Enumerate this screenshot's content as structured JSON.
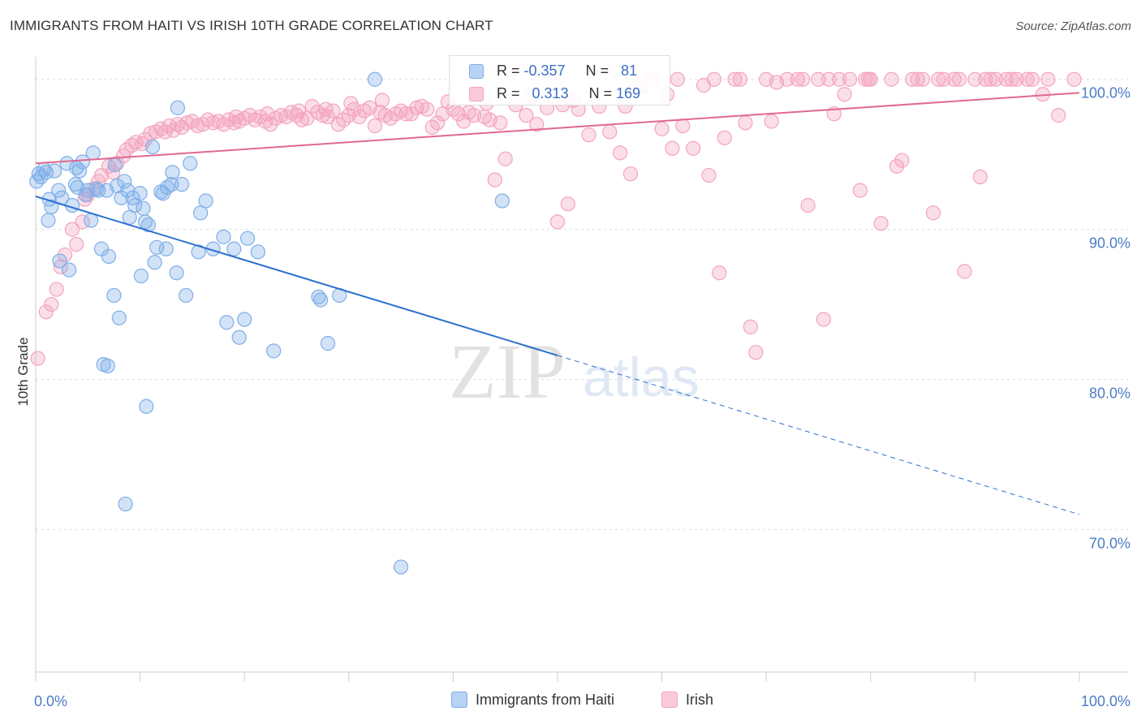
{
  "title": "IMMIGRANTS FROM HAITI VS IRISH 10TH GRADE CORRELATION CHART",
  "source": "Source: ZipAtlas.com",
  "watermark": {
    "zip": "ZIP",
    "atlas": "atlas"
  },
  "legend": {
    "rows": [
      {
        "r_label": "R =",
        "r_value": "-0.357",
        "n_label": "N =",
        "n_value": "81"
      },
      {
        "r_label": "R =",
        "r_value": "0.313",
        "n_label": "N =",
        "n_value": "169"
      }
    ]
  },
  "chart_data": {
    "type": "scatter",
    "title": "IMMIGRANTS FROM HAITI VS IRISH 10TH GRADE CORRELATION CHART",
    "ylabel": "10th Grade",
    "xlim": [
      0,
      100
    ],
    "ylim": [
      60.5,
      101.5
    ],
    "x_tick_labels": [
      "0.0%",
      "100.0%"
    ],
    "y_ticks": [
      70,
      80,
      90,
      100
    ],
    "y_tick_labels": [
      "70.0%",
      "80.0%",
      "90.0%",
      "100.0%"
    ],
    "grid": true,
    "legend_position": "top-center",
    "series": [
      {
        "name": "Immigrants from Haiti",
        "color": "#7eaee8",
        "line_color": "#2b6fcf",
        "r": -0.357,
        "n": 81,
        "trend": {
          "x0": 0,
          "y0": 92.2,
          "x1": 100,
          "y1": 71.0,
          "solid_until": 50
        },
        "points": [
          [
            0.3,
            93.7
          ],
          [
            0.5,
            93.5
          ],
          [
            0.8,
            94.0
          ],
          [
            1.0,
            93.8
          ],
          [
            1.2,
            90.6
          ],
          [
            1.3,
            92.0
          ],
          [
            1.5,
            91.5
          ],
          [
            2.2,
            92.6
          ],
          [
            2.3,
            87.9
          ],
          [
            2.5,
            92.1
          ],
          [
            3.0,
            94.4
          ],
          [
            3.2,
            87.3
          ],
          [
            3.5,
            91.6
          ],
          [
            3.8,
            93.0
          ],
          [
            3.9,
            94.1
          ],
          [
            4.0,
            92.8
          ],
          [
            4.2,
            93.9
          ],
          [
            4.5,
            94.5
          ],
          [
            4.8,
            92.3
          ],
          [
            5.0,
            92.6
          ],
          [
            5.3,
            90.6
          ],
          [
            5.5,
            95.1
          ],
          [
            5.8,
            92.7
          ],
          [
            6.0,
            92.6
          ],
          [
            6.3,
            88.7
          ],
          [
            6.5,
            81.0
          ],
          [
            6.8,
            92.6
          ],
          [
            6.9,
            80.9
          ],
          [
            7.0,
            88.2
          ],
          [
            7.5,
            85.6
          ],
          [
            7.6,
            94.3
          ],
          [
            7.8,
            92.9
          ],
          [
            8.0,
            84.1
          ],
          [
            8.2,
            92.1
          ],
          [
            8.5,
            93.2
          ],
          [
            8.6,
            71.7
          ],
          [
            8.8,
            92.6
          ],
          [
            9.0,
            90.8
          ],
          [
            9.3,
            92.1
          ],
          [
            9.5,
            91.6
          ],
          [
            10.0,
            92.4
          ],
          [
            10.1,
            86.9
          ],
          [
            10.3,
            91.4
          ],
          [
            10.5,
            90.5
          ],
          [
            10.6,
            78.2
          ],
          [
            10.8,
            90.3
          ],
          [
            11.2,
            95.5
          ],
          [
            11.4,
            87.8
          ],
          [
            11.6,
            88.8
          ],
          [
            12.0,
            92.5
          ],
          [
            12.2,
            92.4
          ],
          [
            12.5,
            88.7
          ],
          [
            12.6,
            92.8
          ],
          [
            13.0,
            93.0
          ],
          [
            13.1,
            93.8
          ],
          [
            13.5,
            87.1
          ],
          [
            13.6,
            98.1
          ],
          [
            14.0,
            93.0
          ],
          [
            14.4,
            85.6
          ],
          [
            14.8,
            94.4
          ],
          [
            15.6,
            88.5
          ],
          [
            15.8,
            91.1
          ],
          [
            16.3,
            91.9
          ],
          [
            17.0,
            88.7
          ],
          [
            18.0,
            89.5
          ],
          [
            18.3,
            83.8
          ],
          [
            19.0,
            88.7
          ],
          [
            19.5,
            82.8
          ],
          [
            20.0,
            84.0
          ],
          [
            20.3,
            89.4
          ],
          [
            21.3,
            88.5
          ],
          [
            22.8,
            81.9
          ],
          [
            27.1,
            85.5
          ],
          [
            27.3,
            85.3
          ],
          [
            28.0,
            82.4
          ],
          [
            29.1,
            85.6
          ],
          [
            32.5,
            100.0
          ],
          [
            35.0,
            67.5
          ],
          [
            44.7,
            91.9
          ],
          [
            0.1,
            93.2
          ],
          [
            1.8,
            93.9
          ]
        ]
      },
      {
        "name": "Irish",
        "color": "#f4a3bd",
        "line_color": "#e0698f",
        "r": 0.313,
        "n": 169,
        "trend": {
          "x0": 0,
          "y0": 94.4,
          "x1": 100,
          "y1": 99.1
        },
        "points": [
          [
            0.2,
            81.4
          ],
          [
            1.0,
            84.5
          ],
          [
            1.5,
            85.0
          ],
          [
            2.0,
            86.0
          ],
          [
            2.4,
            87.5
          ],
          [
            2.8,
            88.3
          ],
          [
            3.5,
            90.0
          ],
          [
            3.9,
            89.0
          ],
          [
            4.5,
            90.5
          ],
          [
            4.7,
            92.0
          ],
          [
            5.0,
            92.3
          ],
          [
            5.5,
            92.7
          ],
          [
            6.0,
            93.2
          ],
          [
            6.3,
            93.6
          ],
          [
            7.0,
            94.2
          ],
          [
            7.4,
            93.8
          ],
          [
            7.8,
            94.4
          ],
          [
            8.4,
            94.9
          ],
          [
            8.7,
            95.3
          ],
          [
            9.2,
            95.6
          ],
          [
            9.6,
            95.8
          ],
          [
            10.2,
            95.7
          ],
          [
            10.5,
            96.0
          ],
          [
            11.0,
            96.4
          ],
          [
            11.5,
            96.5
          ],
          [
            12.0,
            96.7
          ],
          [
            12.4,
            96.5
          ],
          [
            12.8,
            96.9
          ],
          [
            13.2,
            96.6
          ],
          [
            13.6,
            97.0
          ],
          [
            14.0,
            96.8
          ],
          [
            14.5,
            97.1
          ],
          [
            15.0,
            97.2
          ],
          [
            15.5,
            96.9
          ],
          [
            16.0,
            97.0
          ],
          [
            16.5,
            97.3
          ],
          [
            17.0,
            97.1
          ],
          [
            17.5,
            97.2
          ],
          [
            18.0,
            97.0
          ],
          [
            18.5,
            97.3
          ],
          [
            19.0,
            97.1
          ],
          [
            19.5,
            97.2
          ],
          [
            20.0,
            97.4
          ],
          [
            20.5,
            97.6
          ],
          [
            21.0,
            97.3
          ],
          [
            21.5,
            97.5
          ],
          [
            22.0,
            97.2
          ],
          [
            22.5,
            97.0
          ],
          [
            23.0,
            97.4
          ],
          [
            23.5,
            97.6
          ],
          [
            24.0,
            97.5
          ],
          [
            24.5,
            97.8
          ],
          [
            25.0,
            97.6
          ],
          [
            25.5,
            97.3
          ],
          [
            26.0,
            97.4
          ],
          [
            26.5,
            98.2
          ],
          [
            27.0,
            97.8
          ],
          [
            27.5,
            97.6
          ],
          [
            28.0,
            97.5
          ],
          [
            28.5,
            97.9
          ],
          [
            29.0,
            97.0
          ],
          [
            29.5,
            97.3
          ],
          [
            30.0,
            97.6
          ],
          [
            30.5,
            98.0
          ],
          [
            31.0,
            97.5
          ],
          [
            31.5,
            97.9
          ],
          [
            32.0,
            98.1
          ],
          [
            32.5,
            96.9
          ],
          [
            33.0,
            97.8
          ],
          [
            33.5,
            97.6
          ],
          [
            34.0,
            97.4
          ],
          [
            34.5,
            97.7
          ],
          [
            35.0,
            97.9
          ],
          [
            35.5,
            97.7
          ],
          [
            36.0,
            97.7
          ],
          [
            37.0,
            98.2
          ],
          [
            37.5,
            98.0
          ],
          [
            38.0,
            96.8
          ],
          [
            38.5,
            97.1
          ],
          [
            39.0,
            97.7
          ],
          [
            40.0,
            98.0
          ],
          [
            40.5,
            97.7
          ],
          [
            41.0,
            97.2
          ],
          [
            41.5,
            97.8
          ],
          [
            42.0,
            97.6
          ],
          [
            43.0,
            97.5
          ],
          [
            43.5,
            97.3
          ],
          [
            44.0,
            93.3
          ],
          [
            44.5,
            97.1
          ],
          [
            45.0,
            94.7
          ],
          [
            46.0,
            98.3
          ],
          [
            47.0,
            97.6
          ],
          [
            48.0,
            97.0
          ],
          [
            49.0,
            98.1
          ],
          [
            50.0,
            90.5
          ],
          [
            50.5,
            98.3
          ],
          [
            51.0,
            91.7
          ],
          [
            52.0,
            98.0
          ],
          [
            53.0,
            96.3
          ],
          [
            54.0,
            98.2
          ],
          [
            55.0,
            96.5
          ],
          [
            56.0,
            95.1
          ],
          [
            56.5,
            98.2
          ],
          [
            57.0,
            93.7
          ],
          [
            58.0,
            99.5
          ],
          [
            59.0,
            100.0
          ],
          [
            60.0,
            96.7
          ],
          [
            60.5,
            99.0
          ],
          [
            61.0,
            95.4
          ],
          [
            62.0,
            96.9
          ],
          [
            63.0,
            95.4
          ],
          [
            64.0,
            99.6
          ],
          [
            64.5,
            93.6
          ],
          [
            65.0,
            100.0
          ],
          [
            65.5,
            87.1
          ],
          [
            66.0,
            96.1
          ],
          [
            67.0,
            100.0
          ],
          [
            68.0,
            97.1
          ],
          [
            68.5,
            83.5
          ],
          [
            69.0,
            81.8
          ],
          [
            70.0,
            100.0
          ],
          [
            70.5,
            97.2
          ],
          [
            71.0,
            99.8
          ],
          [
            72.0,
            100.0
          ],
          [
            73.0,
            100.0
          ],
          [
            74.0,
            91.6
          ],
          [
            75.0,
            100.0
          ],
          [
            75.5,
            84.0
          ],
          [
            76.0,
            100.0
          ],
          [
            76.5,
            97.7
          ],
          [
            77.0,
            100.0
          ],
          [
            77.5,
            99.0
          ],
          [
            78.0,
            100.0
          ],
          [
            79.0,
            92.6
          ],
          [
            79.5,
            100.0
          ],
          [
            80.0,
            100.0
          ],
          [
            81.0,
            90.4
          ],
          [
            82.0,
            100.0
          ],
          [
            83.0,
            94.6
          ],
          [
            84.0,
            100.0
          ],
          [
            85.0,
            100.0
          ],
          [
            86.0,
            91.1
          ],
          [
            87.0,
            100.0
          ],
          [
            88.0,
            100.0
          ],
          [
            89.0,
            87.2
          ],
          [
            90.0,
            100.0
          ],
          [
            91.0,
            100.0
          ],
          [
            92.0,
            100.0
          ],
          [
            93.0,
            100.0
          ],
          [
            94.0,
            100.0
          ],
          [
            95.0,
            100.0
          ],
          [
            97.0,
            100.0
          ],
          [
            98.0,
            97.6
          ],
          [
            99.5,
            100.0
          ],
          [
            82.5,
            94.2
          ],
          [
            84.5,
            100.0
          ],
          [
            86.5,
            100.0
          ],
          [
            88.5,
            100.0
          ],
          [
            90.5,
            93.5
          ],
          [
            91.5,
            100.0
          ],
          [
            93.5,
            100.0
          ],
          [
            95.5,
            100.0
          ],
          [
            96.5,
            99.0
          ],
          [
            79.8,
            100.0
          ],
          [
            73.5,
            100.0
          ],
          [
            67.5,
            100.0
          ],
          [
            61.5,
            100.0
          ],
          [
            57.5,
            99.4
          ],
          [
            51.5,
            98.6
          ],
          [
            47.5,
            98.8
          ],
          [
            43.2,
            98.4
          ],
          [
            39.5,
            98.5
          ],
          [
            36.5,
            98.1
          ],
          [
            33.2,
            98.6
          ],
          [
            30.2,
            98.4
          ],
          [
            27.8,
            98.0
          ],
          [
            25.2,
            97.9
          ],
          [
            22.2,
            97.7
          ],
          [
            19.2,
            97.5
          ]
        ]
      }
    ]
  },
  "bottom_legend": [
    "Immigrants from Haiti",
    "Irish"
  ]
}
